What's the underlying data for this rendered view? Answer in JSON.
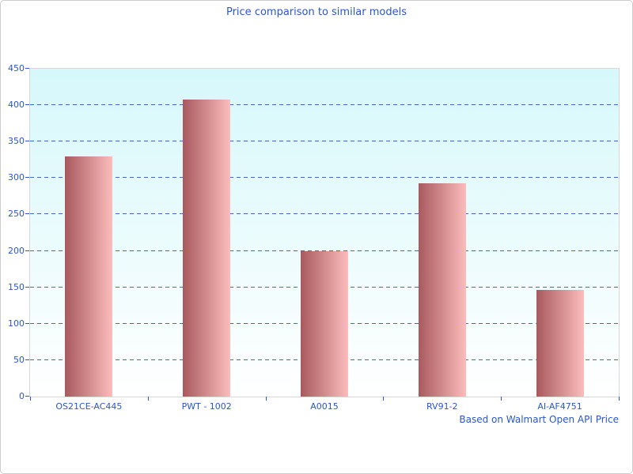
{
  "chart_data": {
    "type": "bar",
    "title": "Price comparison to similar models",
    "footnote": "Based on Walmart Open API Price",
    "categories": [
      "OS21CE-AC445",
      "PWT - 1002",
      "A0015",
      "RV91-2",
      "AI-AF4751"
    ],
    "values": [
      330,
      408,
      200,
      293,
      146
    ],
    "xlabel": "",
    "ylabel": "",
    "ylim": [
      0,
      450
    ],
    "yticks": [
      0,
      50,
      100,
      150,
      200,
      250,
      300,
      350,
      400,
      450
    ],
    "grid": "horizontal-dashed",
    "legend": "none",
    "colors": {
      "text": "#2a57cf",
      "grid": "#3e66cc",
      "tick": "#2a57cf",
      "bar_left": "#a85a5e",
      "bar_right": "#fcbcbc",
      "plot_bg_top": "#d6f8fb",
      "plot_bg_bottom": "#ffffff",
      "plot_border": "#d8d8d8",
      "page_border": "#cccccc"
    }
  }
}
